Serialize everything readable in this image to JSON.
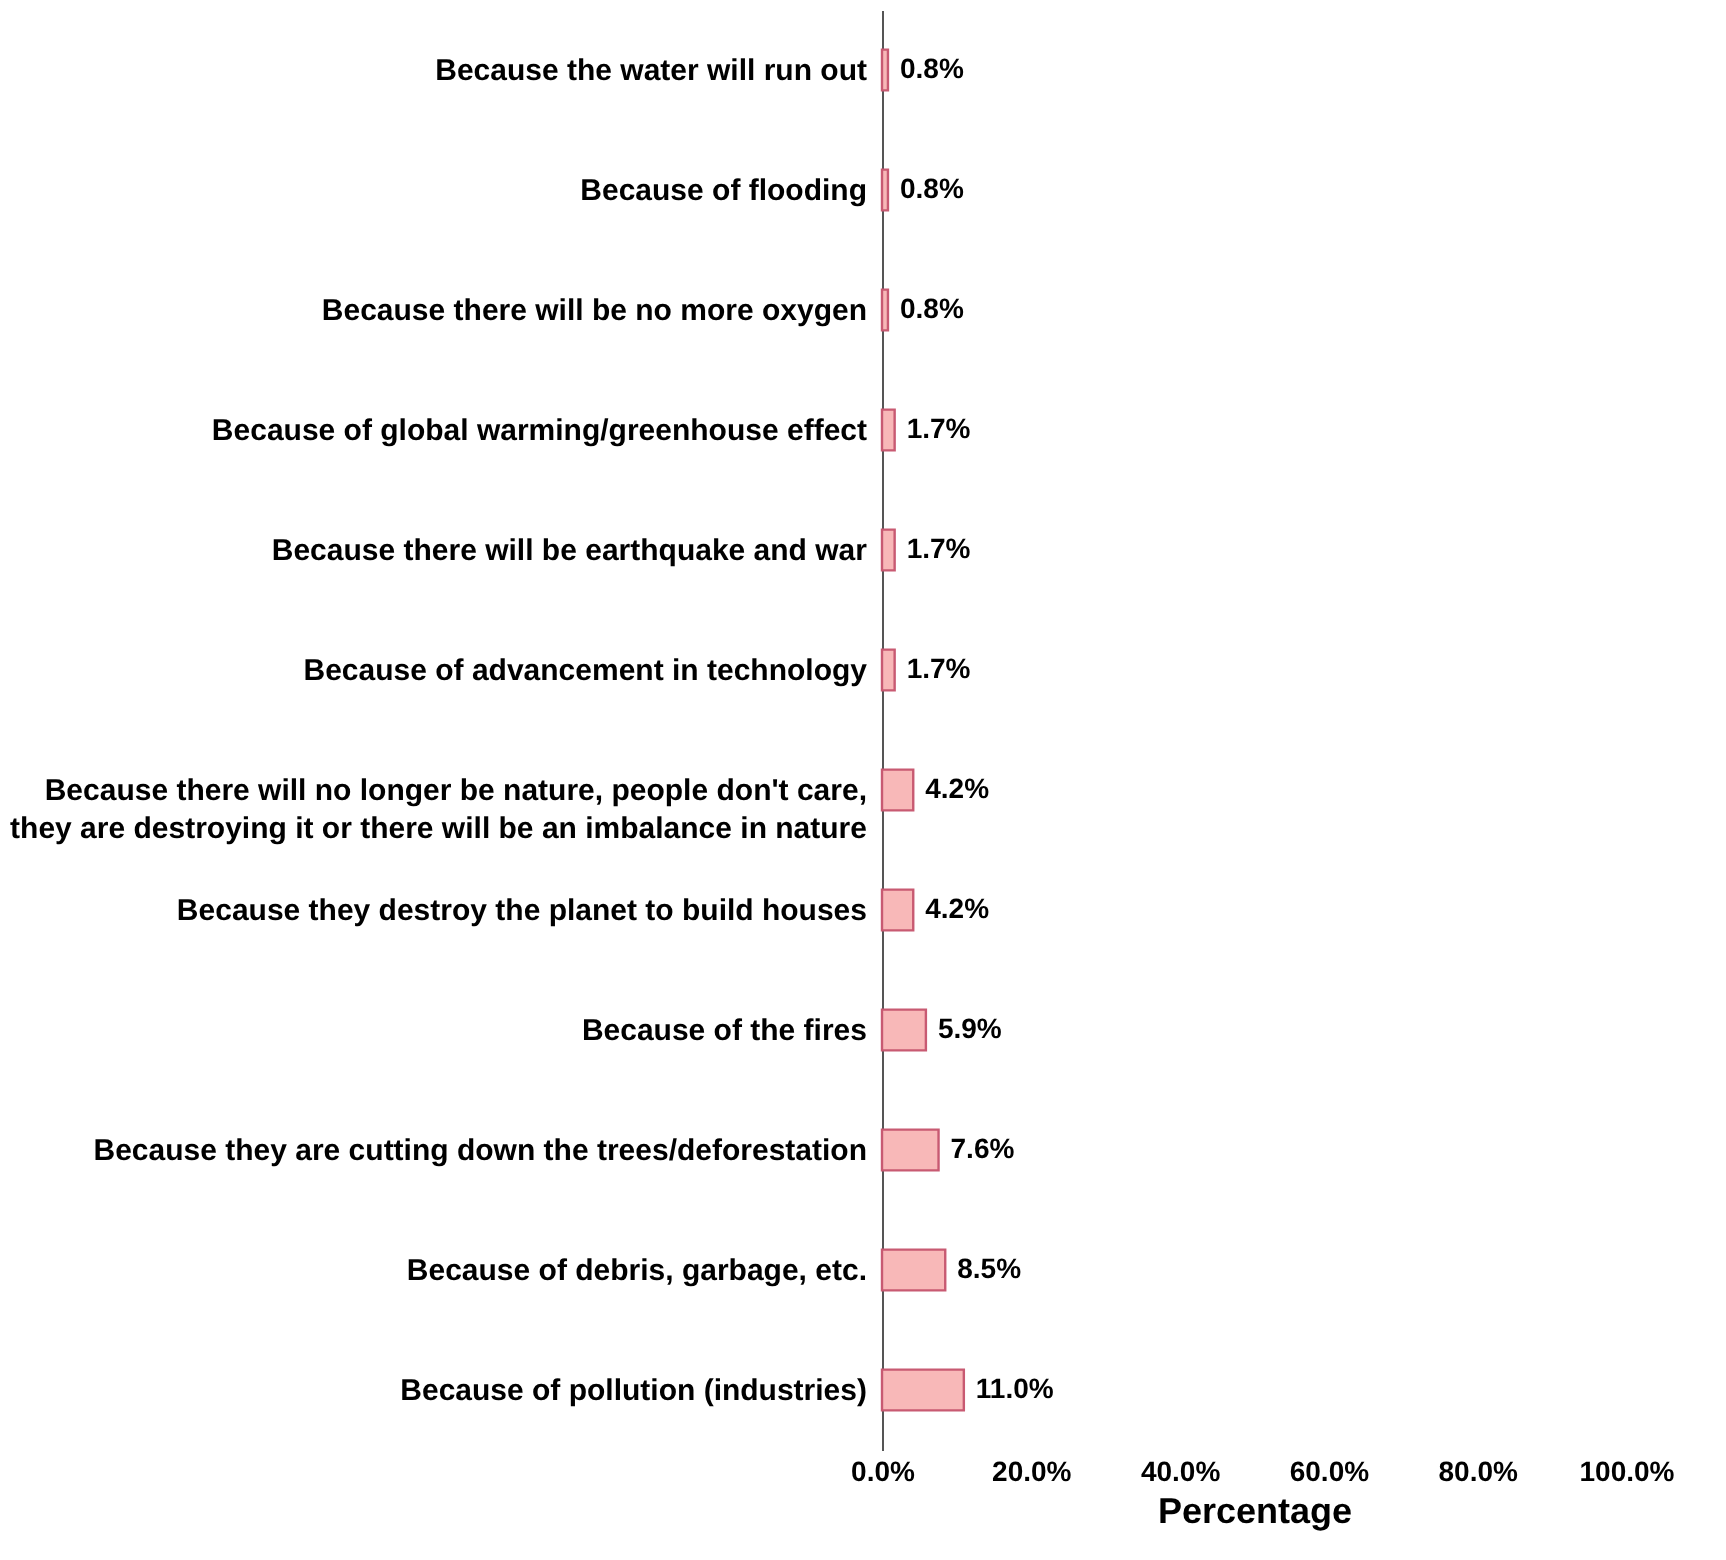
{
  "chart_data": {
    "type": "bar",
    "orientation": "horizontal",
    "xlabel": "Percentage",
    "categories": [
      "Because the water will run out",
      "Because of flooding",
      "Because there will be no more oxygen",
      "Because of global warming/greenhouse effect",
      "Because there will be earthquake and war",
      "Because of advancement in technology",
      "Because there will no longer be nature, people don't care, they are destroying it or there will be an imbalance in nature",
      "Because they destroy the planet to build houses",
      "Because of the fires",
      "Because they are cutting down the trees/deforestation",
      "Because of debris, garbage, etc.",
      "Because of pollution (industries)"
    ],
    "values": [
      0.8,
      0.8,
      0.8,
      1.7,
      1.7,
      1.7,
      4.2,
      4.2,
      5.9,
      7.6,
      8.5,
      11.0
    ],
    "value_labels": [
      "0.8%",
      "0.8%",
      "0.8%",
      "1.7%",
      "1.7%",
      "1.7%",
      "4.2%",
      "4.2%",
      "5.9%",
      "7.6%",
      "8.5%",
      "11.0%"
    ],
    "color": "#f8b8b8",
    "xlim": [
      0,
      100
    ],
    "xticks": [
      {
        "value": 0,
        "label": "0.0%"
      },
      {
        "value": 20,
        "label": "20.0%"
      },
      {
        "value": 40,
        "label": "40.0%"
      },
      {
        "value": 60,
        "label": "60.0%"
      },
      {
        "value": 80,
        "label": "80.0%"
      },
      {
        "value": 100,
        "label": "100.0%"
      }
    ],
    "grid": false
  }
}
